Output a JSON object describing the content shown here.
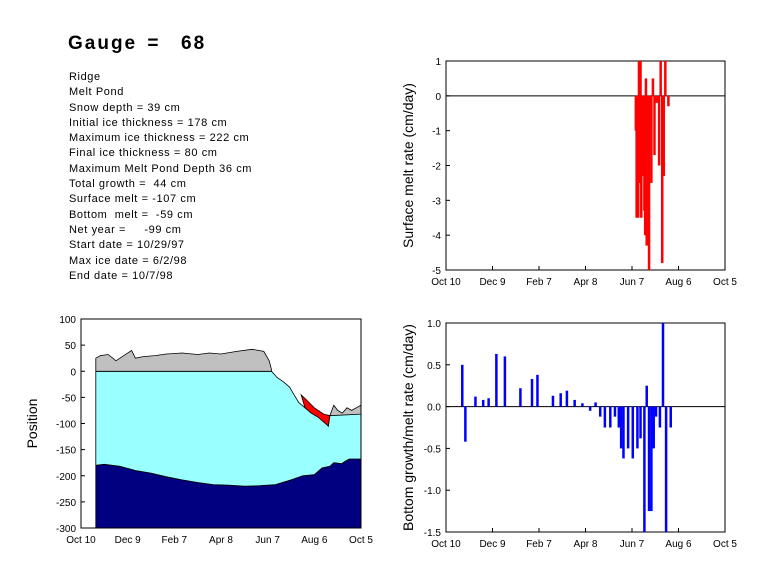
{
  "title": "Gauge =  68",
  "info_lines": [
    "Ridge",
    "Melt Pond",
    "Snow depth = 39 cm",
    "Initial ice thickness = 178 cm",
    "Maximum ice thickness = 222 cm",
    "Final ice thickness = 80 cm",
    "Maximum Melt Pond Depth 36 cm",
    "Total growth =  44 cm",
    "Surface melt = -107 cm",
    "Bottom  melt =  -59 cm",
    "Net year =     -99 cm",
    "Start date = 10/29/97",
    "Max ice date = 6/2/98",
    "End date = 10/7/98"
  ],
  "colors": {
    "snow": "#c0c0c0",
    "ice": "#99ffff",
    "water": "#000080",
    "pond": "#ff0000",
    "surface_melt_bars": "#ff0000",
    "bottom_bars": "#0000ff"
  },
  "chart_data": [
    {
      "type": "bar",
      "ylabel": "Surface melt rate (cm/day)",
      "xlabel": "",
      "x_ticks": [
        "Oct 10",
        "Dec 9",
        "Feb 7",
        "Apr 8",
        "Jun 7",
        "Aug 6",
        "Oct 5"
      ],
      "x_tick_days": [
        0,
        60,
        120,
        180,
        240,
        300,
        360
      ],
      "y_ticks": [
        "1",
        "0",
        "-1",
        "-2",
        "-3",
        "-4",
        "-5"
      ],
      "ylim": [
        -5,
        1
      ],
      "xlim": [
        0,
        360
      ],
      "bar_color": "#ff0000",
      "points": [
        {
          "day": 245,
          "value": -1.0
        },
        {
          "day": 246,
          "value": -3.5
        },
        {
          "day": 247,
          "value": -1.9
        },
        {
          "day": 248,
          "value": -3.5
        },
        {
          "day": 249,
          "value": 1.0
        },
        {
          "day": 250,
          "value": -2.5
        },
        {
          "day": 251,
          "value": 1.0
        },
        {
          "day": 252,
          "value": -3.5
        },
        {
          "day": 253,
          "value": -1.5
        },
        {
          "day": 254,
          "value": -2.3
        },
        {
          "day": 255,
          "value": -1.0
        },
        {
          "day": 256,
          "value": -3.3
        },
        {
          "day": 257,
          "value": -4.0
        },
        {
          "day": 258,
          "value": 0.5
        },
        {
          "day": 259,
          "value": -4.3
        },
        {
          "day": 260,
          "value": -1.5
        },
        {
          "day": 261,
          "value": -0.8
        },
        {
          "day": 262,
          "value": -5.0
        },
        {
          "day": 263,
          "value": -0.9
        },
        {
          "day": 265,
          "value": -2.5
        },
        {
          "day": 267,
          "value": 0.5
        },
        {
          "day": 269,
          "value": -1.7
        },
        {
          "day": 271,
          "value": -0.2
        },
        {
          "day": 273,
          "value": -0.2
        },
        {
          "day": 275,
          "value": -2.0
        },
        {
          "day": 277,
          "value": 1.0
        },
        {
          "day": 279,
          "value": -4.8
        },
        {
          "day": 281,
          "value": -2.3
        },
        {
          "day": 283,
          "value": 1.0
        },
        {
          "day": 287,
          "value": -0.3
        }
      ]
    },
    {
      "type": "area",
      "ylabel": "Position",
      "xlabel": "",
      "x_ticks": [
        "Oct 10",
        "Dec 9",
        "Feb 7",
        "Apr 8",
        "Jun 7",
        "Aug 6",
        "Oct 5"
      ],
      "x_tick_days": [
        0,
        60,
        120,
        180,
        240,
        300,
        360
      ],
      "y_ticks": [
        "100",
        "50",
        "0",
        "-50",
        "-100",
        "-150",
        "-200",
        "-250",
        "-300"
      ],
      "ylim": [
        -300,
        100
      ],
      "xlim": [
        0,
        360
      ],
      "series": [
        {
          "key": "snow_top",
          "points": [
            [
              19,
              25
            ],
            [
              25,
              30
            ],
            [
              35,
              32
            ],
            [
              45,
              20
            ],
            [
              55,
              30
            ],
            [
              65,
              40
            ],
            [
              70,
              25
            ],
            [
              80,
              28
            ],
            [
              95,
              30
            ],
            [
              110,
              33
            ],
            [
              130,
              35
            ],
            [
              150,
              32
            ],
            [
              165,
              35
            ],
            [
              180,
              33
            ],
            [
              200,
              38
            ],
            [
              220,
              42
            ],
            [
              235,
              38
            ],
            [
              242,
              20
            ],
            [
              245,
              2
            ]
          ]
        },
        {
          "key": "snow_top_late",
          "points": [
            [
              320,
              -85
            ],
            [
              325,
              -65
            ],
            [
              330,
              -75
            ],
            [
              336,
              -80
            ],
            [
              342,
              -70
            ],
            [
              348,
              -75
            ],
            [
              354,
              -70
            ],
            [
              360,
              -65
            ]
          ]
        },
        {
          "key": "ice_top",
          "points": [
            [
              19,
              0
            ],
            [
              240,
              0
            ],
            [
              245,
              0
            ],
            [
              252,
              -12
            ],
            [
              260,
              -20
            ],
            [
              268,
              -30
            ],
            [
              274,
              -45
            ],
            [
              280,
              -60
            ],
            [
              288,
              -70
            ],
            [
              296,
              -80
            ],
            [
              305,
              -88
            ],
            [
              312,
              -95
            ],
            [
              318,
              -105
            ],
            [
              320,
              -85
            ],
            [
              328,
              -82
            ],
            [
              340,
              -82
            ],
            [
              350,
              -82
            ],
            [
              360,
              -82
            ]
          ]
        },
        {
          "key": "pond_top",
          "points": [
            [
              283,
              -45
            ],
            [
              290,
              -55
            ],
            [
              300,
              -70
            ],
            [
              312,
              -82
            ],
            [
              320,
              -85
            ]
          ]
        },
        {
          "key": "ice_bottom",
          "points": [
            [
              19,
              -180
            ],
            [
              30,
              -178
            ],
            [
              50,
              -182
            ],
            [
              70,
              -190
            ],
            [
              90,
              -195
            ],
            [
              110,
              -202
            ],
            [
              130,
              -208
            ],
            [
              150,
              -213
            ],
            [
              170,
              -217
            ],
            [
              190,
              -218
            ],
            [
              210,
              -220
            ],
            [
              230,
              -219
            ],
            [
              250,
              -217
            ],
            [
              270,
              -208
            ],
            [
              285,
              -200
            ],
            [
              300,
              -198
            ],
            [
              310,
              -185
            ],
            [
              320,
              -182
            ],
            [
              325,
              -175
            ],
            [
              335,
              -177
            ],
            [
              340,
              -172
            ],
            [
              345,
              -168
            ],
            [
              360,
              -168
            ]
          ]
        }
      ]
    },
    {
      "type": "bar",
      "ylabel": "Bottom growth/melt rate (cm/day)",
      "xlabel": "",
      "x_ticks": [
        "Oct 10",
        "Dec 9",
        "Feb 7",
        "Apr 8",
        "Jun 7",
        "Aug 6",
        "Oct 5"
      ],
      "x_tick_days": [
        0,
        60,
        120,
        180,
        240,
        300,
        360
      ],
      "y_ticks": [
        "1.0",
        "0.5",
        "0.0",
        "-0.5",
        "-1.0",
        "-1.5"
      ],
      "ylim": [
        -1.5,
        1.0
      ],
      "xlim": [
        0,
        360
      ],
      "bar_color": "#0000ff",
      "points": [
        {
          "day": 21,
          "value": 0.5
        },
        {
          "day": 25,
          "value": -0.42
        },
        {
          "day": 38,
          "value": 0.12
        },
        {
          "day": 48,
          "value": 0.08
        },
        {
          "day": 55,
          "value": 0.1
        },
        {
          "day": 65,
          "value": 0.63
        },
        {
          "day": 76,
          "value": 0.6
        },
        {
          "day": 96,
          "value": 0.22
        },
        {
          "day": 111,
          "value": 0.33
        },
        {
          "day": 118,
          "value": 0.38
        },
        {
          "day": 138,
          "value": 0.13
        },
        {
          "day": 148,
          "value": 0.16
        },
        {
          "day": 156,
          "value": 0.19
        },
        {
          "day": 166,
          "value": 0.08
        },
        {
          "day": 176,
          "value": 0.04
        },
        {
          "day": 186,
          "value": -0.05
        },
        {
          "day": 193,
          "value": 0.05
        },
        {
          "day": 199,
          "value": -0.12
        },
        {
          "day": 205,
          "value": -0.25
        },
        {
          "day": 212,
          "value": -0.25
        },
        {
          "day": 218,
          "value": -0.12
        },
        {
          "day": 223,
          "value": -0.25
        },
        {
          "day": 226,
          "value": -0.5
        },
        {
          "day": 229,
          "value": -0.62
        },
        {
          "day": 235,
          "value": -0.5
        },
        {
          "day": 241,
          "value": -0.62
        },
        {
          "day": 247,
          "value": -0.5
        },
        {
          "day": 251,
          "value": -0.38
        },
        {
          "day": 256,
          "value": -1.5
        },
        {
          "day": 259,
          "value": 0.25
        },
        {
          "day": 262,
          "value": -1.25
        },
        {
          "day": 265,
          "value": -1.25
        },
        {
          "day": 268,
          "value": -0.5
        },
        {
          "day": 271,
          "value": -0.12
        },
        {
          "day": 276,
          "value": -0.25
        },
        {
          "day": 280,
          "value": 1.0
        },
        {
          "day": 284,
          "value": -1.5
        },
        {
          "day": 290,
          "value": -0.25
        }
      ]
    }
  ]
}
